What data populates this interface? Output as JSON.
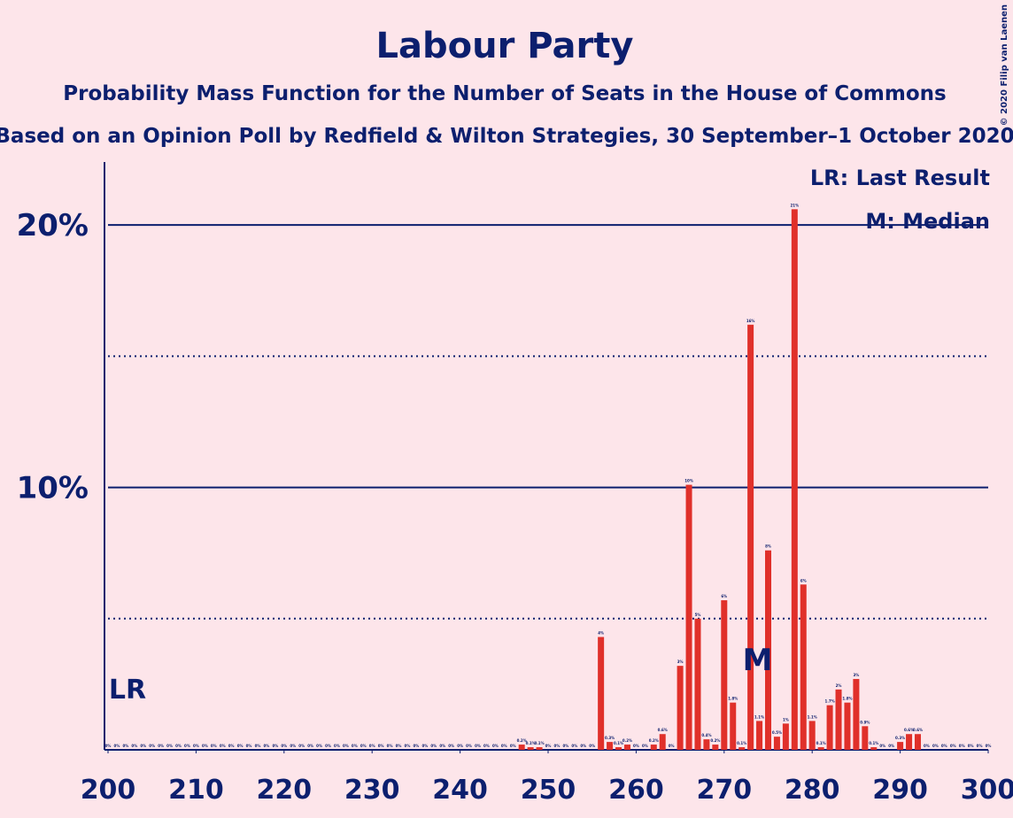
{
  "chart_data": {
    "type": "bar",
    "title": "Labour Party",
    "subtitle": "Probability Mass Function for the Number of Seats in the House of Commons",
    "subtitle2": "Based on an Opinion Poll by Redfield & Wilton Strategies, 30 September–1 October 2020",
    "copyright": "© 2020 Filip van Laenen",
    "legend": [
      "LR: Last Result",
      "M: Median"
    ],
    "last_result": {
      "x": 200,
      "label": "LR"
    },
    "median": {
      "x": 274,
      "label": "M"
    },
    "color": "#e0302a",
    "x": [
      200,
      201,
      202,
      203,
      204,
      205,
      206,
      207,
      208,
      209,
      210,
      211,
      212,
      213,
      214,
      215,
      216,
      217,
      218,
      219,
      220,
      221,
      222,
      223,
      224,
      225,
      226,
      227,
      228,
      229,
      230,
      231,
      232,
      233,
      234,
      235,
      236,
      237,
      238,
      239,
      240,
      241,
      242,
      243,
      244,
      245,
      246,
      247,
      248,
      249,
      250,
      251,
      252,
      253,
      254,
      255,
      256,
      257,
      258,
      259,
      260,
      261,
      262,
      263,
      264,
      265,
      266,
      267,
      268,
      269,
      270,
      271,
      272,
      273,
      274,
      275,
      276,
      277,
      278,
      279,
      280,
      281,
      282,
      283,
      284,
      285,
      286,
      287,
      288,
      289,
      290,
      291,
      292,
      293,
      294,
      295,
      296,
      297,
      298,
      299,
      300
    ],
    "values": [
      0,
      0,
      0,
      0,
      0,
      0,
      0,
      0,
      0,
      0,
      0,
      0,
      0,
      0,
      0,
      0,
      0,
      0,
      0,
      0,
      0,
      0,
      0,
      0,
      0,
      0,
      0,
      0,
      0,
      0,
      0,
      0,
      0,
      0,
      0,
      0,
      0,
      0,
      0,
      0,
      0,
      0,
      0,
      0,
      0,
      0,
      0,
      0.2,
      0.1,
      0.1,
      0,
      0,
      0,
      0,
      0,
      0,
      4.3,
      0.3,
      0.1,
      0.2,
      0,
      0,
      0.2,
      0.6,
      0,
      3.2,
      10.1,
      5,
      0.4,
      0.2,
      5.7,
      1.8,
      0.1,
      16.2,
      1.1,
      7.6,
      0.5,
      1,
      20.6,
      6.3,
      1.1,
      0.1,
      1.7,
      2.3,
      1.8,
      2.7,
      0.9,
      0.1,
      0,
      0,
      0.3,
      0.6,
      0.6,
      0,
      0,
      0,
      0,
      0,
      0,
      0,
      0
    ],
    "value_labels": [
      "0%",
      "0%",
      "0%",
      "0%",
      "0%",
      "0%",
      "0%",
      "0%",
      "0%",
      "0%",
      "0%",
      "0%",
      "0%",
      "0%",
      "0%",
      "0%",
      "0%",
      "0%",
      "0%",
      "0%",
      "0%",
      "0%",
      "0%",
      "0%",
      "0%",
      "0%",
      "0%",
      "0%",
      "0%",
      "0%",
      "0%",
      "0%",
      "0%",
      "0%",
      "0%",
      "0%",
      "0%",
      "0%",
      "0%",
      "0%",
      "0%",
      "0%",
      "0%",
      "0%",
      "0%",
      "0%",
      "0%",
      "0.2%",
      "0.1%",
      "0.1%",
      "0%",
      "0%",
      "0%",
      "0%",
      "0%",
      "0%",
      "4%",
      "0.3%",
      "0.1%",
      "0.2%",
      "0%",
      "0%",
      "0.2%",
      "0.6%",
      "0%",
      "3%",
      "10%",
      "5%",
      "0.4%",
      "0.2%",
      "6%",
      "1.8%",
      "0.1%",
      "16%",
      "1.1%",
      "8%",
      "0.5%",
      "1%",
      "21%",
      "6%",
      "1.1%",
      "0.1%",
      "1.7%",
      "2%",
      "1.8%",
      "3%",
      "0.9%",
      "0.1%",
      "0%",
      "0%",
      "0.3%",
      "0.6%",
      "0.6%",
      "0%",
      "0%",
      "0%",
      "0%",
      "0%",
      "0%",
      "0%",
      "0%"
    ],
    "xlim": [
      200,
      300
    ],
    "xticks": [
      200,
      210,
      220,
      230,
      240,
      250,
      260,
      270,
      280,
      290,
      300
    ],
    "ylim": [
      0,
      22.4
    ],
    "yticks": [
      {
        "value": 10,
        "label": "10%"
      },
      {
        "value": 20,
        "label": "20%"
      }
    ],
    "minor_yticks": [
      5,
      15
    ],
    "grid": true
  }
}
